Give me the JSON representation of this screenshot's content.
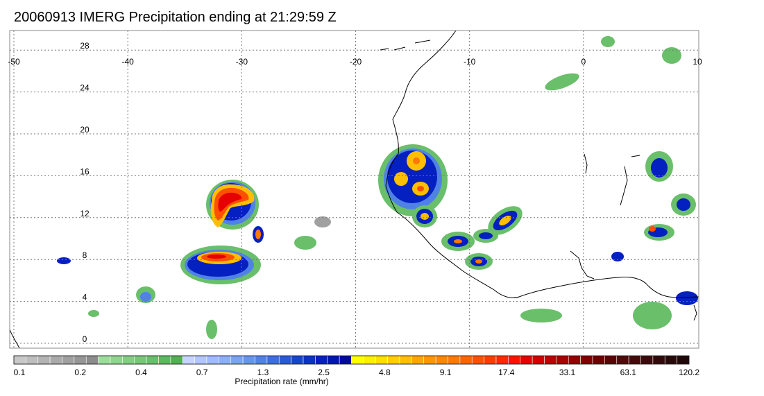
{
  "title": "20060913 IMERG Precipitation ending at 21:29:59 Z",
  "map": {
    "lon_range": [
      -50,
      10
    ],
    "lat_range": [
      -1,
      31
    ],
    "lon_ticks": [
      "-50",
      "-40",
      "-30",
      "-20",
      "-10",
      "0",
      "10"
    ],
    "lat_ticks": [
      "28",
      "24",
      "20",
      "16",
      "12",
      "8",
      "4",
      "0"
    ],
    "gridlines": "dotted",
    "coastline_color": "#000000"
  },
  "colorbar": {
    "title": "Precipitation rate (mm/hr)",
    "tick_labels": [
      "0.1",
      "0.2",
      "0.4",
      "0.7",
      "1.3",
      "2.5",
      "4.8",
      "9.1",
      "17.4",
      "33.1",
      "63.1",
      "120.2"
    ],
    "colors": [
      "#c8c8c8",
      "#bebebe",
      "#b4b4b4",
      "#aaaaaa",
      "#a0a0a0",
      "#969696",
      "#8c8c8c",
      "#9bde9b",
      "#8ed68e",
      "#82cf82",
      "#76c776",
      "#6abf6a",
      "#5eb85e",
      "#52b052",
      "#c6d4ff",
      "#b3c7ff",
      "#a0baff",
      "#8cb0f5",
      "#78a4f0",
      "#6496eb",
      "#5082e6",
      "#3c6ee1",
      "#285ad7",
      "#1446cd",
      "#0a32c8",
      "#0520c0",
      "#0014b4",
      "#000aa0",
      "#ffff00",
      "#ffef00",
      "#ffdf00",
      "#ffcf00",
      "#ffbf00",
      "#ffa500",
      "#ff9600",
      "#ff8700",
      "#ff7800",
      "#ff6400",
      "#ff5000",
      "#ff3c00",
      "#ff2800",
      "#fa1400",
      "#e60000",
      "#d20000",
      "#be0000",
      "#aa0000",
      "#960000",
      "#820000",
      "#6e0000",
      "#5a0505",
      "#500a0a",
      "#460a0a",
      "#3c0a0a",
      "#320a0a",
      "#280a0a",
      "#200808"
    ]
  }
}
